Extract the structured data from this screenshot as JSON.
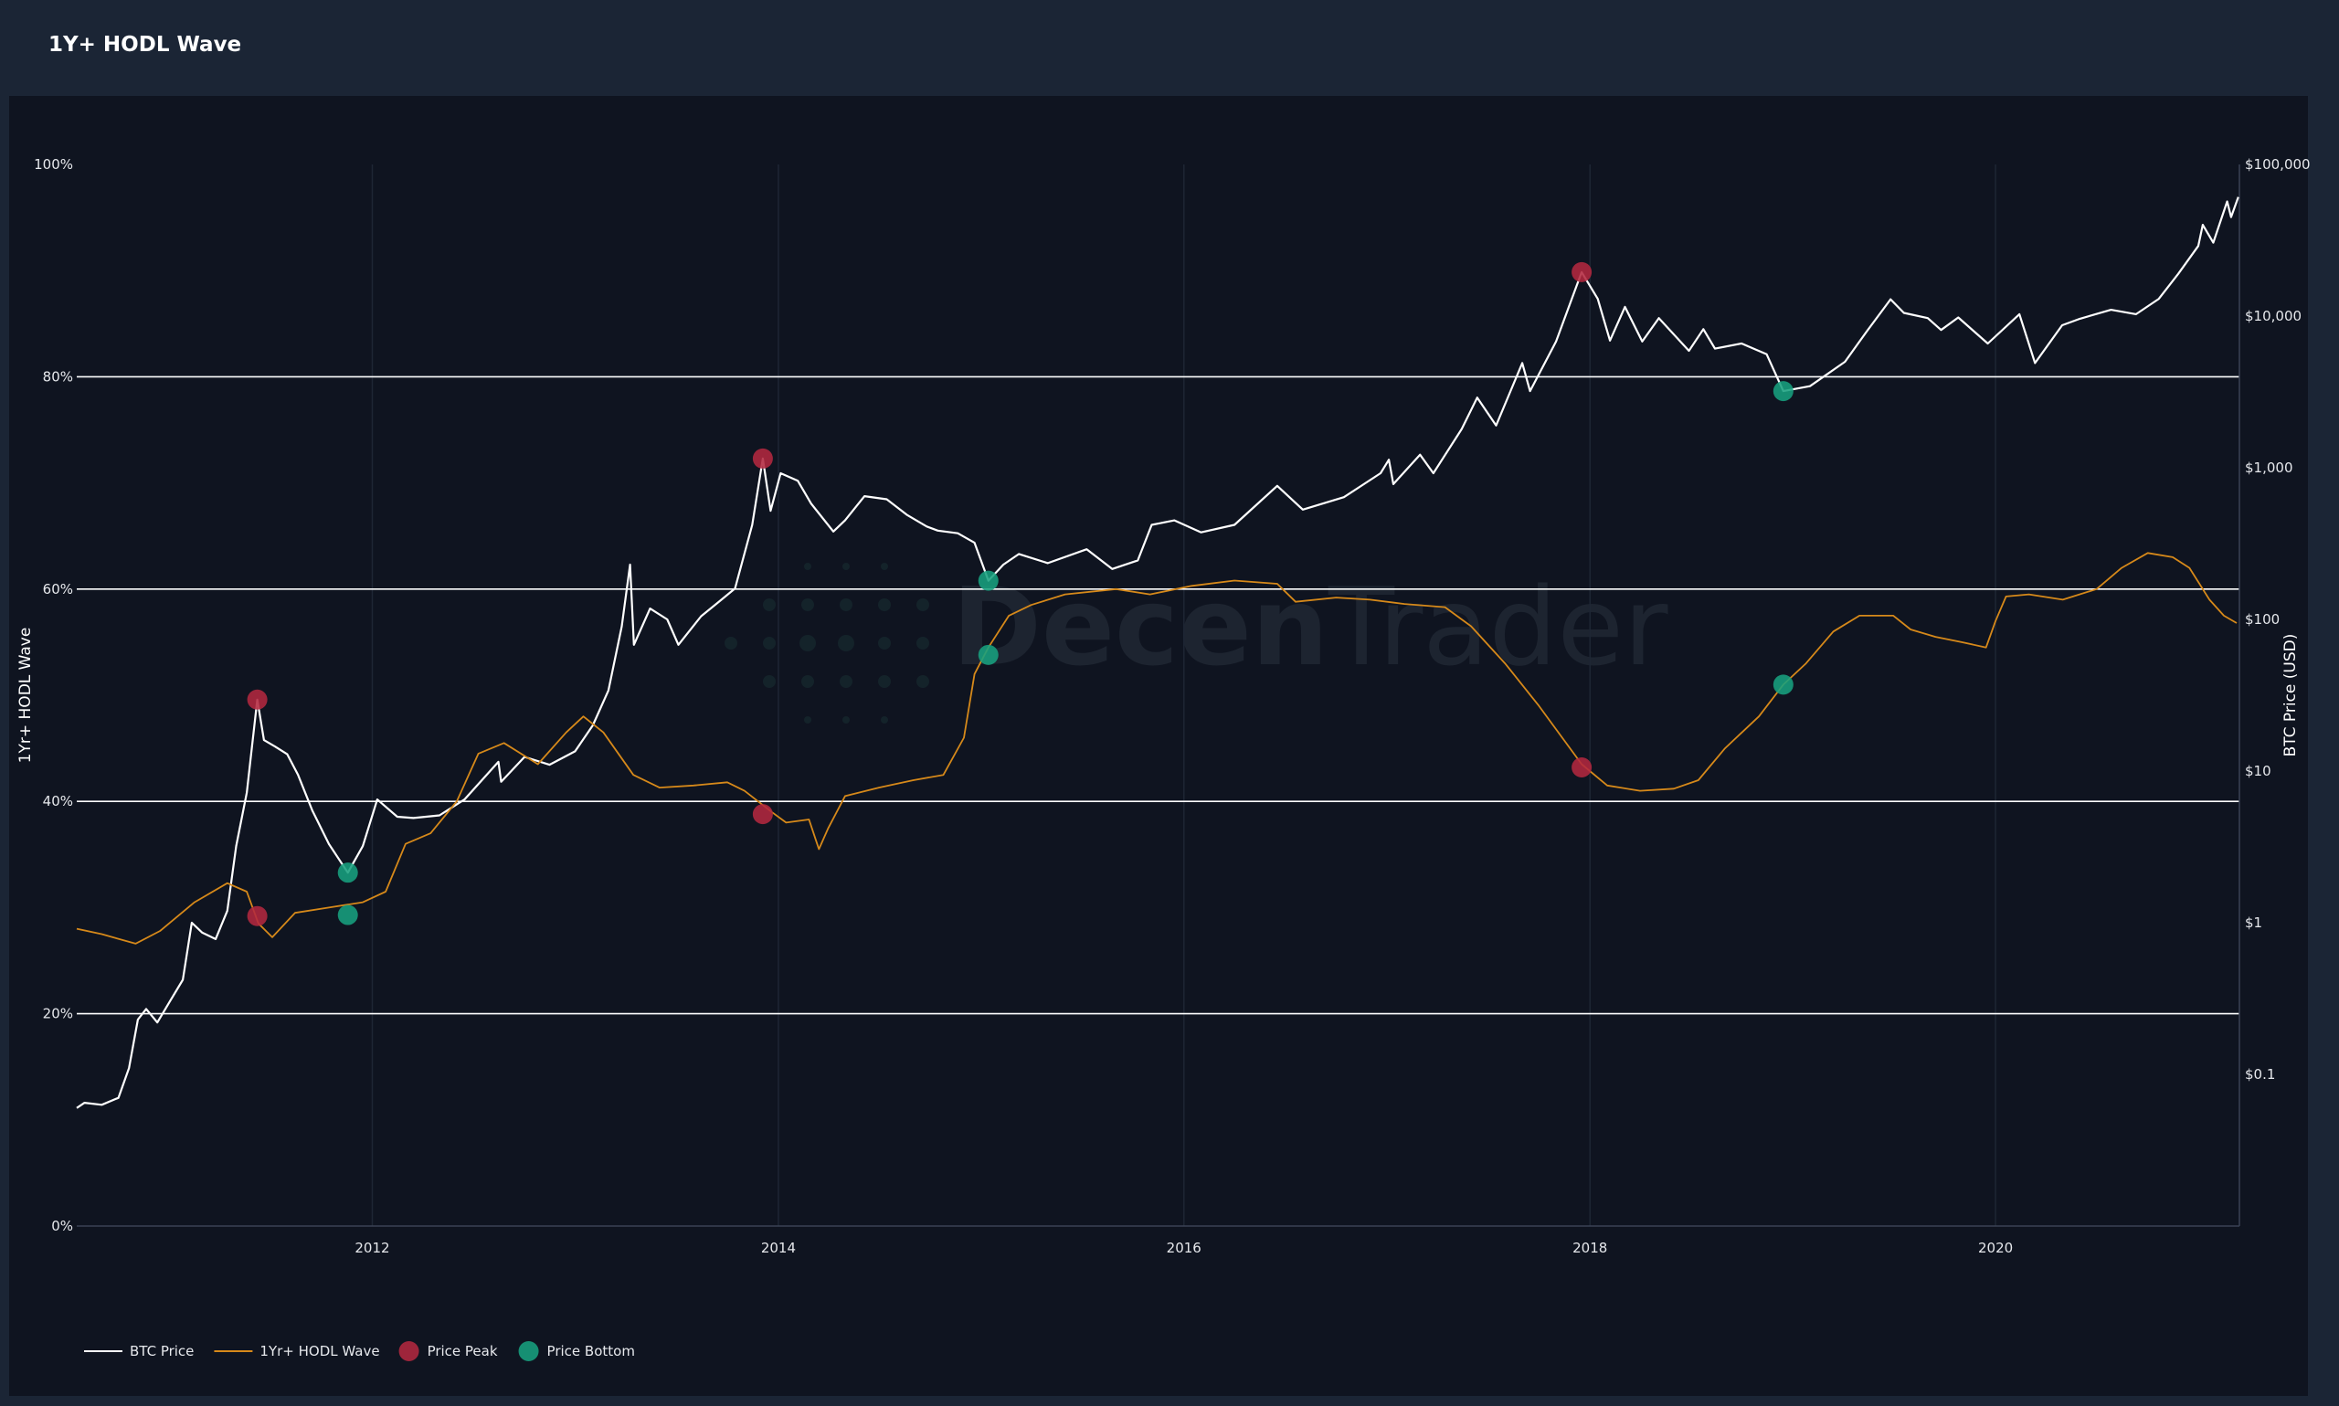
{
  "header": {
    "title": "1Y+ HODL Wave"
  },
  "colors": {
    "background": "#0f1420",
    "header": "#1b2535",
    "btc_price": "#ffffff",
    "hodl_wave": "#d6891a",
    "price_peak": "#b3283f",
    "price_bottom": "#18a07e",
    "grid_major": "#ffffff",
    "grid_minor": "#1e2634"
  },
  "watermark": {
    "part1": "Decen",
    "part2": "Trader"
  },
  "chart_data": {
    "type": "line",
    "title": "1Y+ HODL Wave",
    "x_axis": {
      "type": "date",
      "range": [
        "2010-07-18",
        "2021-03-15"
      ],
      "ticks": [
        "2012",
        "2014",
        "2016",
        "2018",
        "2020"
      ]
    },
    "y_left": {
      "label": "1Yr+ HODL Wave",
      "range": [
        0,
        100
      ],
      "unit": "%",
      "ticks": [
        "0%",
        "20%",
        "40%",
        "60%",
        "80%",
        "100%"
      ]
    },
    "y_right": {
      "label": "BTC Price (USD)",
      "scale": "log",
      "range": [
        0.01,
        100000
      ],
      "ticks": [
        "$0.1",
        "$1",
        "$10",
        "$100",
        "$1,000",
        "$10,000",
        "$100,000"
      ]
    },
    "grid": {
      "horizontal_lines_at": [
        20,
        40,
        60,
        80
      ],
      "vertical_lines": true
    },
    "legend": {
      "position": "bottom-left",
      "items": [
        {
          "label": "BTC Price",
          "kind": "line"
        },
        {
          "label": "1Yr+ HODL Wave",
          "kind": "line"
        },
        {
          "label": "Price Peak",
          "kind": "marker"
        },
        {
          "label": "Price Bottom",
          "kind": "marker"
        }
      ]
    },
    "series": [
      {
        "name": "BTC Price",
        "axis": "right",
        "points": [
          [
            "2010-07-18",
            0.06
          ],
          [
            "2010-08-01",
            0.065
          ],
          [
            "2010-09-01",
            0.063
          ],
          [
            "2010-10-01",
            0.07
          ],
          [
            "2010-10-20",
            0.11
          ],
          [
            "2010-11-05",
            0.23
          ],
          [
            "2010-11-20",
            0.27
          ],
          [
            "2010-12-10",
            0.22
          ],
          [
            "2011-01-01",
            0.3
          ],
          [
            "2011-01-25",
            0.42
          ],
          [
            "2011-02-10",
            1.0
          ],
          [
            "2011-03-01",
            0.86
          ],
          [
            "2011-03-25",
            0.78
          ],
          [
            "2011-04-15",
            1.2
          ],
          [
            "2011-05-01",
            3.2
          ],
          [
            "2011-05-20",
            7.2
          ],
          [
            "2011-06-08",
            29.6
          ],
          [
            "2011-06-20",
            16.0
          ],
          [
            "2011-07-10",
            14.5
          ],
          [
            "2011-08-01",
            12.9
          ],
          [
            "2011-08-20",
            9.5
          ],
          [
            "2011-09-15",
            5.5
          ],
          [
            "2011-10-15",
            3.3
          ],
          [
            "2011-11-18",
            2.14
          ],
          [
            "2011-12-15",
            3.2
          ],
          [
            "2012-01-10",
            6.5
          ],
          [
            "2012-02-15",
            5.0
          ],
          [
            "2012-03-15",
            4.9
          ],
          [
            "2012-05-01",
            5.1
          ],
          [
            "2012-06-15",
            6.5
          ],
          [
            "2012-08-15",
            11.5
          ],
          [
            "2012-08-20",
            8.5
          ],
          [
            "2012-10-01",
            12.4
          ],
          [
            "2012-11-15",
            11.0
          ],
          [
            "2012-12-31",
            13.5
          ],
          [
            "2013-02-01",
            20.0
          ],
          [
            "2013-03-01",
            34.0
          ],
          [
            "2013-03-25",
            90.0
          ],
          [
            "2013-04-09",
            230.0
          ],
          [
            "2013-04-16",
            68.0
          ],
          [
            "2013-05-15",
            118.0
          ],
          [
            "2013-06-15",
            100.0
          ],
          [
            "2013-07-05",
            68.0
          ],
          [
            "2013-08-15",
            105.0
          ],
          [
            "2013-09-15",
            130.0
          ],
          [
            "2013-10-15",
            160.0
          ],
          [
            "2013-11-15",
            420.0
          ],
          [
            "2013-12-04",
            1150.0
          ],
          [
            "2013-12-18",
            520.0
          ],
          [
            "2014-01-05",
            920.0
          ],
          [
            "2014-02-05",
            820.0
          ],
          [
            "2014-03-01",
            580.0
          ],
          [
            "2014-04-10",
            380.0
          ],
          [
            "2014-05-01",
            450.0
          ],
          [
            "2014-06-05",
            650.0
          ],
          [
            "2014-07-15",
            620.0
          ],
          [
            "2014-08-20",
            490.0
          ],
          [
            "2014-09-25",
            410.0
          ],
          [
            "2014-10-15",
            385.0
          ],
          [
            "2014-11-20",
            370.0
          ],
          [
            "2014-12-20",
            320.0
          ],
          [
            "2015-01-14",
            180.0
          ],
          [
            "2015-02-10",
            230.0
          ],
          [
            "2015-03-10",
            270.0
          ],
          [
            "2015-05-01",
            235.0
          ],
          [
            "2015-07-10",
            290.0
          ],
          [
            "2015-08-25",
            215.0
          ],
          [
            "2015-10-10",
            245.0
          ],
          [
            "2015-11-04",
            420.0
          ],
          [
            "2015-12-15",
            450.0
          ],
          [
            "2016-02-01",
            375.0
          ],
          [
            "2016-04-01",
            420.0
          ],
          [
            "2016-06-17",
            760.0
          ],
          [
            "2016-08-02",
            530.0
          ],
          [
            "2016-10-15",
            640.0
          ],
          [
            "2016-12-20",
            920.0
          ],
          [
            "2017-01-04",
            1130.0
          ],
          [
            "2017-01-12",
            780.0
          ],
          [
            "2017-03-01",
            1220.0
          ],
          [
            "2017-03-25",
            920.0
          ],
          [
            "2017-05-15",
            1800.0
          ],
          [
            "2017-06-12",
            2900.0
          ],
          [
            "2017-07-16",
            1900.0
          ],
          [
            "2017-09-01",
            4900.0
          ],
          [
            "2017-09-15",
            3200.0
          ],
          [
            "2017-11-01",
            6800.0
          ],
          [
            "2017-12-17",
            19500.0
          ],
          [
            "2018-01-15",
            13000.0
          ],
          [
            "2018-02-06",
            6900.0
          ],
          [
            "2018-03-05",
            11500.0
          ],
          [
            "2018-04-05",
            6800.0
          ],
          [
            "2018-05-05",
            9700.0
          ],
          [
            "2018-06-28",
            5900.0
          ],
          [
            "2018-07-24",
            8200.0
          ],
          [
            "2018-08-14",
            6100.0
          ],
          [
            "2018-10-01",
            6600.0
          ],
          [
            "2018-11-15",
            5600.0
          ],
          [
            "2018-12-15",
            3200.0
          ],
          [
            "2019-02-01",
            3450.0
          ],
          [
            "2019-04-05",
            5000.0
          ],
          [
            "2019-05-15",
            8000.0
          ],
          [
            "2019-06-26",
            12900.0
          ],
          [
            "2019-07-20",
            10500.0
          ],
          [
            "2019-09-01",
            9700.0
          ],
          [
            "2019-09-25",
            8100.0
          ],
          [
            "2019-10-26",
            9800.0
          ],
          [
            "2019-12-18",
            6600.0
          ],
          [
            "2020-02-13",
            10300.0
          ],
          [
            "2020-03-12",
            4900.0
          ],
          [
            "2020-04-30",
            8700.0
          ],
          [
            "2020-06-01",
            9600.0
          ],
          [
            "2020-07-27",
            11000.0
          ],
          [
            "2020-09-10",
            10300.0
          ],
          [
            "2020-10-21",
            13000.0
          ],
          [
            "2020-11-25",
            19000.0
          ],
          [
            "2020-12-31",
            29000.0
          ],
          [
            "2021-01-08",
            40000.0
          ],
          [
            "2021-01-27",
            30500.0
          ],
          [
            "2021-02-21",
            57000.0
          ],
          [
            "2021-02-28",
            45000.0
          ],
          [
            "2021-03-13",
            61000.0
          ]
        ]
      },
      {
        "name": "1Yr+ HODL Wave",
        "axis": "left",
        "unit": "%",
        "points": [
          [
            "2010-07-18",
            28.0
          ],
          [
            "2010-09-01",
            27.5
          ],
          [
            "2010-11-01",
            26.6
          ],
          [
            "2010-12-15",
            27.8
          ],
          [
            "2011-02-15",
            30.5
          ],
          [
            "2011-04-15",
            32.3
          ],
          [
            "2011-05-20",
            31.5
          ],
          [
            "2011-06-10",
            28.5
          ],
          [
            "2011-07-05",
            27.2
          ],
          [
            "2011-08-15",
            29.5
          ],
          [
            "2011-10-15",
            30.0
          ],
          [
            "2011-12-15",
            30.5
          ],
          [
            "2012-01-25",
            31.5
          ],
          [
            "2012-03-01",
            36.0
          ],
          [
            "2012-04-15",
            37.0
          ],
          [
            "2012-06-01",
            40.0
          ],
          [
            "2012-07-10",
            44.5
          ],
          [
            "2012-08-25",
            45.5
          ],
          [
            "2012-10-25",
            43.5
          ],
          [
            "2012-12-15",
            46.5
          ],
          [
            "2013-01-15",
            48.0
          ],
          [
            "2013-02-20",
            46.5
          ],
          [
            "2013-04-15",
            42.5
          ],
          [
            "2013-06-01",
            41.3
          ],
          [
            "2013-08-01",
            41.5
          ],
          [
            "2013-10-01",
            41.8
          ],
          [
            "2013-11-01",
            41.0
          ],
          [
            "2013-12-20",
            39.0
          ],
          [
            "2014-01-15",
            38.0
          ],
          [
            "2014-02-25",
            38.3
          ],
          [
            "2014-03-15",
            35.5
          ],
          [
            "2014-04-01",
            37.5
          ],
          [
            "2014-05-01",
            40.5
          ],
          [
            "2014-07-01",
            41.3
          ],
          [
            "2014-09-01",
            42.0
          ],
          [
            "2014-10-25",
            42.5
          ],
          [
            "2014-12-01",
            46.0
          ],
          [
            "2014-12-20",
            52.0
          ],
          [
            "2015-01-14",
            54.5
          ],
          [
            "2015-02-20",
            57.5
          ],
          [
            "2015-04-01",
            58.5
          ],
          [
            "2015-06-01",
            59.5
          ],
          [
            "2015-09-01",
            60.0
          ],
          [
            "2015-11-01",
            59.5
          ],
          [
            "2016-01-15",
            60.3
          ],
          [
            "2016-04-01",
            60.8
          ],
          [
            "2016-06-17",
            60.5
          ],
          [
            "2016-07-20",
            58.8
          ],
          [
            "2016-10-01",
            59.2
          ],
          [
            "2016-12-01",
            59.0
          ],
          [
            "2017-02-01",
            58.6
          ],
          [
            "2017-04-15",
            58.3
          ],
          [
            "2017-06-01",
            56.5
          ],
          [
            "2017-08-01",
            53.0
          ],
          [
            "2017-10-01",
            49.0
          ],
          [
            "2017-12-17",
            43.5
          ],
          [
            "2018-02-01",
            41.5
          ],
          [
            "2018-04-01",
            41.0
          ],
          [
            "2018-06-01",
            41.2
          ],
          [
            "2018-07-15",
            42.0
          ],
          [
            "2018-09-01",
            45.0
          ],
          [
            "2018-11-01",
            48.0
          ],
          [
            "2018-12-15",
            51.0
          ],
          [
            "2019-01-25",
            53.0
          ],
          [
            "2019-03-15",
            56.0
          ],
          [
            "2019-05-01",
            57.5
          ],
          [
            "2019-07-01",
            57.5
          ],
          [
            "2019-08-01",
            56.2
          ],
          [
            "2019-09-15",
            55.5
          ],
          [
            "2019-11-01",
            55.0
          ],
          [
            "2019-12-15",
            54.5
          ],
          [
            "2020-01-01",
            57.0
          ],
          [
            "2020-01-20",
            59.3
          ],
          [
            "2020-03-01",
            59.5
          ],
          [
            "2020-05-01",
            59.0
          ],
          [
            "2020-07-01",
            60.0
          ],
          [
            "2020-08-15",
            62.0
          ],
          [
            "2020-10-01",
            63.4
          ],
          [
            "2020-11-15",
            63.0
          ],
          [
            "2020-12-15",
            62.0
          ],
          [
            "2021-01-20",
            59.0
          ],
          [
            "2021-02-15",
            57.5
          ],
          [
            "2021-03-10",
            56.8
          ]
        ]
      }
    ],
    "markers": [
      {
        "name": "Price Peak",
        "date": "2011-06-08",
        "btc": 29.6,
        "hodl": 29.2
      },
      {
        "name": "Price Peak",
        "date": "2013-12-04",
        "btc": 1150.0,
        "hodl": 38.8
      },
      {
        "name": "Price Peak",
        "date": "2017-12-17",
        "btc": 19500.0,
        "hodl": 43.2
      },
      {
        "name": "Price Bottom",
        "date": "2011-11-18",
        "btc": 2.14,
        "hodl": 29.3
      },
      {
        "name": "Price Bottom",
        "date": "2015-01-14",
        "btc": 180.0,
        "hodl": 53.8
      },
      {
        "name": "Price Bottom",
        "date": "2018-12-15",
        "btc": 3200.0,
        "hodl": 51.0
      }
    ]
  }
}
